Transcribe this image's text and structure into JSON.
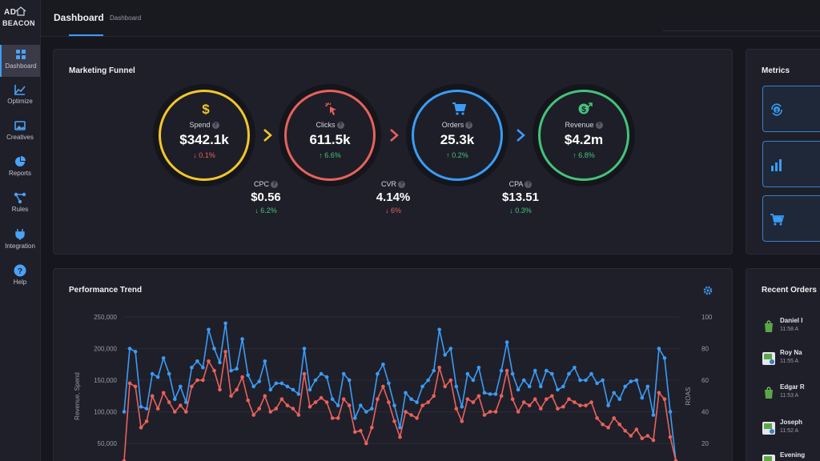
{
  "app": {
    "logo_top": "AD",
    "logo_bottom": "BEACON"
  },
  "sidebar": {
    "items": [
      {
        "label": "Dashboard",
        "icon": "grid-icon",
        "active": true
      },
      {
        "label": "Optimize",
        "icon": "trend-icon"
      },
      {
        "label": "Creatives",
        "icon": "image-icon"
      },
      {
        "label": "Reports",
        "icon": "pie-icon"
      },
      {
        "label": "Rules",
        "icon": "share-icon"
      },
      {
        "label": "Integration",
        "icon": "plug-icon"
      },
      {
        "label": "Help",
        "icon": "help-icon"
      }
    ]
  },
  "header": {
    "title": "Dashboard",
    "breadcrumb": "Dashboard"
  },
  "funnel": {
    "title": "Marketing Funnel",
    "stages": [
      {
        "label": "Spend",
        "value": "$342.1k",
        "delta": "↓ 0.1%",
        "direction": "down",
        "color": "#f2c62a",
        "icon": "dollar-icon"
      },
      {
        "label": "Clicks",
        "value": "611.5k",
        "delta": "↑ 6.6%",
        "direction": "up",
        "color": "#e8625a",
        "icon": "cursor-click-icon"
      },
      {
        "label": "Orders",
        "value": "25.3k",
        "delta": "↑ 0.2%",
        "direction": "up",
        "color": "#3a9cf5",
        "icon": "cart-icon"
      },
      {
        "label": "Revenue",
        "value": "$4.2m",
        "delta": "↑ 6.8%",
        "direction": "up",
        "color": "#44c37a",
        "icon": "revenue-icon"
      }
    ],
    "ratios": [
      {
        "label": "CPC",
        "value": "$0.56",
        "delta": "↓ 6.2%",
        "direction": "up"
      },
      {
        "label": "CVR",
        "value": "4.14%",
        "delta": "↓ 6%",
        "direction": "down"
      },
      {
        "label": "CPA",
        "value": "$13.51",
        "delta": "↓ 0.3%",
        "direction": "up"
      }
    ]
  },
  "metrics": {
    "title": "Metrics",
    "cards": [
      {
        "icon": "cycle-dollar-icon"
      },
      {
        "icon": "bar-chart-icon"
      },
      {
        "icon": "cart-dollar-icon"
      }
    ]
  },
  "performance": {
    "title": "Performance Trend"
  },
  "chart_data": {
    "type": "line",
    "ylabel": "Revenue, Spend",
    "y2label": "ROAS",
    "ylim": [
      0,
      250000
    ],
    "y2lim": [
      0,
      100
    ],
    "yticks": [
      "250,000",
      "200,000",
      "150,000",
      "100,000",
      "50,000"
    ],
    "y2ticks": [
      "100",
      "80",
      "60",
      "40",
      "20"
    ],
    "grid": true,
    "series": [
      {
        "color": "#3a9cf5",
        "values": [
          100000,
          200000,
          195000,
          108000,
          105000,
          160000,
          155000,
          185000,
          160000,
          120000,
          140000,
          115000,
          170000,
          180000,
          170000,
          230000,
          200000,
          178000,
          240000,
          165000,
          168000,
          215000,
          158000,
          140000,
          148000,
          180000,
          135000,
          145000,
          145000,
          140000,
          135000,
          128000,
          200000,
          135000,
          150000,
          160000,
          155000,
          120000,
          110000,
          160000,
          150000,
          90000,
          110000,
          100000,
          105000,
          160000,
          175000,
          145000,
          110000,
          75000,
          130000,
          120000,
          115000,
          140000,
          150000,
          165000,
          230000,
          190000,
          200000,
          140000,
          108000,
          160000,
          150000,
          170000,
          130000,
          128000,
          128000,
          165000,
          210000,
          160000,
          135000,
          150000,
          140000,
          165000,
          140000,
          165000,
          160000,
          135000,
          140000,
          160000,
          170000,
          150000,
          150000,
          160000,
          145000,
          150000,
          110000,
          130000,
          120000,
          140000,
          148000,
          150000,
          122000,
          140000,
          95000,
          200000,
          185000,
          100000,
          10000
        ]
      },
      {
        "color": "#e8625a",
        "values": [
          5000,
          145000,
          140000,
          75000,
          85000,
          125000,
          105000,
          130000,
          115000,
          100000,
          110000,
          100000,
          140000,
          150000,
          150000,
          180000,
          165000,
          135000,
          195000,
          125000,
          135000,
          155000,
          118000,
          95000,
          105000,
          125000,
          100000,
          105000,
          120000,
          110000,
          105000,
          95000,
          160000,
          108000,
          115000,
          122000,
          115000,
          90000,
          90000,
          120000,
          110000,
          68000,
          70000,
          50000,
          75000,
          120000,
          140000,
          115000,
          85000,
          60000,
          100000,
          95000,
          90000,
          110000,
          115000,
          125000,
          170000,
          140000,
          150000,
          105000,
          85000,
          120000,
          115000,
          125000,
          95000,
          100000,
          100000,
          125000,
          165000,
          120000,
          100000,
          115000,
          110000,
          120000,
          105000,
          120000,
          125000,
          105000,
          108000,
          120000,
          115000,
          110000,
          110000,
          115000,
          90000,
          80000,
          75000,
          90000,
          80000,
          70000,
          62000,
          72000,
          58000,
          62000,
          55000,
          130000,
          120000,
          60000,
          8000
        ]
      }
    ]
  },
  "recent_orders": {
    "title": "Recent Orders",
    "items": [
      {
        "name": "Daniel I",
        "time": "11:58 A",
        "icon": "shopify-icon"
      },
      {
        "name": "Roy Na",
        "time": "11:55 A",
        "icon": "store-icon"
      },
      {
        "name": "Edgar R",
        "time": "11:53 A",
        "icon": "shopify-icon"
      },
      {
        "name": "Joseph",
        "time": "11:52 A",
        "icon": "store-icon"
      },
      {
        "name": "Evening",
        "time": "",
        "icon": "store-icon"
      }
    ]
  }
}
